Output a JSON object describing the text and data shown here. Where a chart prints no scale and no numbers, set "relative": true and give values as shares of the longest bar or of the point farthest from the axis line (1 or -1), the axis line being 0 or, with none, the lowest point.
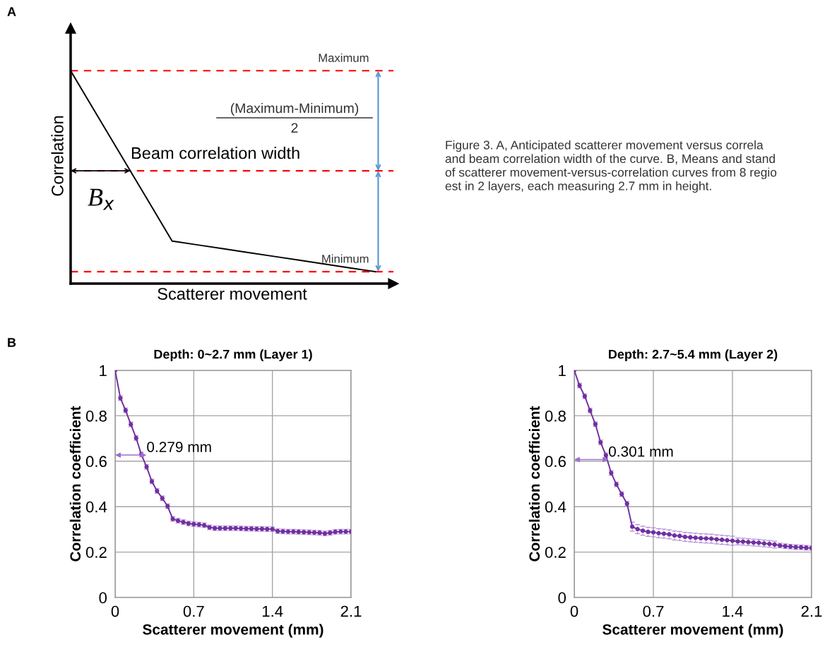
{
  "chart_data": [
    {
      "type": "line",
      "relative": true,
      "xlabel": "Scatterer movement",
      "ylabel": "Correlation",
      "grid": false,
      "marker": "none",
      "line_style": "solid",
      "categories": [
        null,
        null,
        null,
        null,
        null,
        null,
        null,
        null,
        null,
        null,
        null,
        null,
        null
      ],
      "series": [
        {
          "color": "#000000",
          "values": [
            1.0,
            0.8,
            0.6,
            0.4,
            0.2,
            0.182,
            0.164,
            0.146,
            0.128,
            0.11,
            0.092,
            0.074,
            0.056
          ]
        }
      ],
      "ref_lines": [
        {
          "axis": "y",
          "value": 1.0,
          "label": "Maximum",
          "color": "#ff0000",
          "line_style": "dashed"
        },
        {
          "axis": "y",
          "value": 0.53,
          "label": null,
          "color": "#ff0000",
          "line_style": "dashed"
        },
        {
          "axis": "y",
          "value": 0.056,
          "label": "Minimum",
          "color": "#ff0000",
          "line_style": "dashed"
        }
      ],
      "annotations": [
        "A",
        "(Maximum-Minimum)",
        "2",
        "Beam correlation width",
        "B$_{x}$",
        "Figure 3. A, Anticipated scatterer movement versus correla\nand beam correlation width of the curve. B, Means and stand\nof scatterer movement-versus-correlation curves from 8 regio\nest in 2 layers, each measuring 2.7 mm in height."
      ]
    },
    {
      "type": "line",
      "title": "Depth: 0~2.7 mm (Layer 1)",
      "xlabel": "Scatterer movement (mm)",
      "ylabel": "Correlation coefficient",
      "xlim": [
        0,
        2.1
      ],
      "ylim": [
        0,
        1
      ],
      "xticks": [
        0,
        0.7,
        1.4,
        2.1
      ],
      "yticks": [
        0,
        0.2,
        0.4,
        0.6,
        0.8,
        1
      ],
      "grid": true,
      "marker": "circle",
      "line_style": "solid",
      "x": [
        0,
        0.047,
        0.093,
        0.14,
        0.187,
        0.233,
        0.28,
        0.327,
        0.373,
        0.42,
        0.467,
        0.513,
        0.56,
        0.607,
        0.653,
        0.7,
        0.747,
        0.793,
        0.84,
        0.887,
        0.933,
        0.98,
        1.027,
        1.073,
        1.12,
        1.167,
        1.213,
        1.26,
        1.307,
        1.353,
        1.4,
        1.447,
        1.493,
        1.54,
        1.587,
        1.633,
        1.68,
        1.727,
        1.773,
        1.82,
        1.867,
        1.913,
        1.96,
        2.007,
        2.053,
        2.1
      ],
      "series": [
        {
          "color": "#7030a0",
          "values": [
            1.0,
            0.878,
            0.824,
            0.762,
            0.702,
            0.63,
            0.575,
            0.511,
            0.469,
            0.437,
            0.402,
            0.346,
            0.338,
            0.332,
            0.326,
            0.323,
            0.321,
            0.318,
            0.309,
            0.305,
            0.305,
            0.305,
            0.305,
            0.305,
            0.304,
            0.303,
            0.303,
            0.302,
            0.302,
            0.301,
            0.301,
            0.292,
            0.291,
            0.29,
            0.29,
            0.289,
            0.288,
            0.287,
            0.286,
            0.285,
            0.282,
            0.285,
            0.289,
            0.29,
            0.29,
            0.29
          ],
          "errors": [
            null,
            0.01,
            0.01,
            0.01,
            0.01,
            0.01,
            0.01,
            0.01,
            0.01,
            0.01,
            0.01,
            0.01,
            0.01,
            0.01,
            0.01,
            0.01,
            0.01,
            0.01,
            0.01,
            0.01,
            0.01,
            0.01,
            0.01,
            0.01,
            0.01,
            0.01,
            0.01,
            0.01,
            0.01,
            0.01,
            0.01,
            0.01,
            0.01,
            0.01,
            0.01,
            0.01,
            0.01,
            0.01,
            0.01,
            0.01,
            0.01,
            0.01,
            0.01,
            0.01,
            0.01,
            0.01
          ]
        }
      ],
      "annotations": [
        "B",
        {
          "text": "0.279 mm",
          "x": 0.279,
          "y": 0.627
        }
      ]
    },
    {
      "type": "line",
      "title": "Depth: 2.7~5.4 mm (Layer 2)",
      "xlabel": "Scatterer movement (mm)",
      "ylabel": "Correlation coefficient",
      "xlim": [
        0,
        2.1
      ],
      "ylim": [
        0,
        1
      ],
      "xticks": [
        0,
        0.7,
        1.4,
        2.1
      ],
      "yticks": [
        0,
        0.2,
        0.4,
        0.6,
        0.8,
        1
      ],
      "grid": true,
      "marker": "circle",
      "line_style": "solid",
      "x": [
        0,
        0.047,
        0.093,
        0.14,
        0.187,
        0.233,
        0.28,
        0.327,
        0.373,
        0.42,
        0.467,
        0.513,
        0.56,
        0.607,
        0.653,
        0.7,
        0.747,
        0.793,
        0.84,
        0.887,
        0.933,
        0.98,
        1.027,
        1.073,
        1.12,
        1.167,
        1.213,
        1.26,
        1.307,
        1.353,
        1.4,
        1.447,
        1.493,
        1.54,
        1.587,
        1.633,
        1.68,
        1.727,
        1.773,
        1.82,
        1.867,
        1.913,
        1.96,
        2.007,
        2.053,
        2.1
      ],
      "series": [
        {
          "color": "#7030a0",
          "values": [
            1.0,
            0.933,
            0.886,
            0.823,
            0.763,
            0.683,
            0.626,
            0.548,
            0.498,
            0.455,
            0.413,
            0.312,
            0.301,
            0.294,
            0.289,
            0.287,
            0.283,
            0.281,
            0.278,
            0.273,
            0.271,
            0.267,
            0.265,
            0.263,
            0.261,
            0.26,
            0.259,
            0.256,
            0.254,
            0.252,
            0.25,
            0.247,
            0.246,
            0.244,
            0.242,
            0.241,
            0.238,
            0.236,
            0.233,
            0.229,
            0.226,
            0.224,
            0.222,
            0.221,
            0.219,
            0.218
          ],
          "errors": [
            null,
            0.01,
            0.01,
            0.01,
            0.01,
            0.01,
            0.01,
            0.01,
            0.01,
            0.01,
            0.01,
            0.02,
            0.02,
            0.02,
            0.02,
            0.02,
            0.02,
            0.02,
            0.02,
            0.02,
            0.02,
            0.02,
            0.02,
            0.02,
            0.02,
            0.02,
            0.02,
            0.02,
            0.02,
            0.02,
            0.02,
            0.015,
            0.015,
            0.015,
            0.015,
            0.015,
            0.015,
            0.015,
            0.015,
            0.01,
            0.01,
            0.01,
            0.01,
            0.01,
            0.01,
            0.01
          ]
        }
      ],
      "annotations": [
        {
          "text": "0.301 mm",
          "x": 0.301,
          "y": 0.607
        }
      ]
    }
  ]
}
